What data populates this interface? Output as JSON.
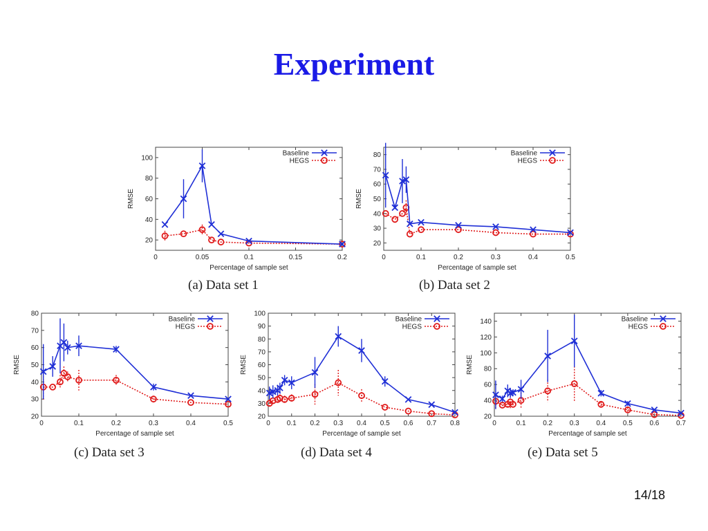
{
  "slide": {
    "title": "Experiment",
    "page_number": "14/18"
  },
  "colors": {
    "baseline": "#1f2fd6",
    "hegs": "#e01b1b",
    "title": "#1a1ae6"
  },
  "chart_data": [
    {
      "type": "line",
      "caption": "(a) Data set 1",
      "xlabel": "Percentage of sample set",
      "ylabel": "RMSE",
      "xlim": [
        0,
        0.2
      ],
      "ylim": [
        10,
        110
      ],
      "xticks": [
        0,
        0.05,
        0.1,
        0.15,
        0.2
      ],
      "yticks": [
        20,
        40,
        60,
        80,
        100
      ],
      "xtick_labels": [
        "0",
        "0.05",
        "0.1",
        "0.15",
        "0.2"
      ],
      "ytick_labels": [
        "20",
        "40",
        "60",
        "80",
        "100"
      ],
      "legend_position": "top-right",
      "series": [
        {
          "name": "Baseline",
          "color": "#1f2fd6",
          "marker": "x",
          "style": "solid",
          "x": [
            0.01,
            0.03,
            0.05,
            0.06,
            0.07,
            0.1,
            0.2
          ],
          "y": [
            35,
            60,
            92,
            35,
            26,
            19,
            16
          ],
          "err": [
            0,
            19,
            16,
            0,
            0,
            0,
            0
          ]
        },
        {
          "name": "HEGS",
          "color": "#e01b1b",
          "marker": "o",
          "style": "dotted",
          "x": [
            0.01,
            0.03,
            0.05,
            0.06,
            0.07,
            0.1,
            0.2
          ],
          "y": [
            24,
            26,
            30,
            20,
            18,
            17,
            16
          ],
          "err": [
            5,
            0,
            5,
            0,
            0,
            0,
            0
          ]
        }
      ]
    },
    {
      "type": "line",
      "caption": "(b) Data set 2",
      "xlabel": "Percentage of sample set",
      "ylabel": "RMSE",
      "xlim": [
        0,
        0.5
      ],
      "ylim": [
        15,
        85
      ],
      "xticks": [
        0,
        0.1,
        0.2,
        0.3,
        0.4,
        0.5
      ],
      "yticks": [
        20,
        30,
        40,
        50,
        60,
        70,
        80
      ],
      "xtick_labels": [
        "0",
        "0.1",
        "0.2",
        "0.3",
        "0.4",
        "0.5"
      ],
      "ytick_labels": [
        "20",
        "30",
        "40",
        "50",
        "60",
        "70",
        "80"
      ],
      "legend_position": "top-right",
      "series": [
        {
          "name": "Baseline",
          "color": "#1f2fd6",
          "marker": "x",
          "style": "solid",
          "x": [
            0.005,
            0.03,
            0.05,
            0.06,
            0.07,
            0.1,
            0.2,
            0.3,
            0.4,
            0.5
          ],
          "y": [
            66,
            44,
            62,
            63,
            33,
            34,
            32,
            31,
            29,
            27
          ],
          "err": [
            22,
            0,
            15,
            9,
            0,
            0,
            0,
            0,
            0,
            0
          ]
        },
        {
          "name": "HEGS",
          "color": "#e01b1b",
          "marker": "o",
          "style": "dotted",
          "x": [
            0.005,
            0.03,
            0.05,
            0.06,
            0.07,
            0.1,
            0.2,
            0.3,
            0.4,
            0.5
          ],
          "y": [
            40,
            36,
            40,
            44,
            26,
            29,
            29,
            27,
            26,
            26
          ],
          "err": [
            0,
            0,
            0,
            5,
            0,
            0,
            0,
            0,
            0,
            0
          ]
        }
      ]
    },
    {
      "type": "line",
      "caption": "(c) Data set 3",
      "xlabel": "Percentage of sample set",
      "ylabel": "RMSE",
      "xlim": [
        0,
        0.5
      ],
      "ylim": [
        20,
        80
      ],
      "xticks": [
        0,
        0.1,
        0.2,
        0.3,
        0.4,
        0.5
      ],
      "yticks": [
        20,
        30,
        40,
        50,
        60,
        70,
        80
      ],
      "xtick_labels": [
        "0",
        "0.1",
        "0.2",
        "0.3",
        "0.4",
        "0.5"
      ],
      "ytick_labels": [
        "20",
        "30",
        "40",
        "50",
        "60",
        "70",
        "80"
      ],
      "legend_position": "top-right",
      "series": [
        {
          "name": "Baseline",
          "color": "#1f2fd6",
          "marker": "x",
          "style": "solid",
          "x": [
            0.005,
            0.03,
            0.05,
            0.06,
            0.07,
            0.1,
            0.2,
            0.3,
            0.4,
            0.5
          ],
          "y": [
            46,
            49,
            61,
            63,
            60,
            61,
            59,
            37,
            32,
            30
          ],
          "err": [
            16,
            6,
            16,
            11,
            4,
            6,
            2,
            2,
            0,
            0
          ]
        },
        {
          "name": "HEGS",
          "color": "#e01b1b",
          "marker": "o",
          "style": "dotted",
          "x": [
            0.005,
            0.03,
            0.05,
            0.06,
            0.07,
            0.1,
            0.2,
            0.3,
            0.4,
            0.5
          ],
          "y": [
            37,
            37,
            40,
            45,
            43,
            41,
            41,
            30,
            28,
            27
          ],
          "err": [
            8,
            0,
            4,
            4,
            3,
            6,
            3,
            2,
            0,
            0
          ]
        }
      ]
    },
    {
      "type": "line",
      "caption": "(d) Data set 4",
      "xlabel": "Percentage of sample set",
      "ylabel": "RMSE",
      "xlim": [
        0,
        0.8
      ],
      "ylim": [
        20,
        100
      ],
      "xticks": [
        0,
        0.1,
        0.2,
        0.3,
        0.4,
        0.5,
        0.6,
        0.7,
        0.8
      ],
      "yticks": [
        20,
        30,
        40,
        50,
        60,
        70,
        80,
        90,
        100
      ],
      "xtick_labels": [
        "0",
        "0.1",
        "0.2",
        "0.3",
        "0.4",
        "0.5",
        "0.6",
        "0.7",
        "0.8"
      ],
      "ytick_labels": [
        "20",
        "30",
        "40",
        "50",
        "60",
        "70",
        "80",
        "90",
        "100"
      ],
      "legend_position": "top-right",
      "series": [
        {
          "name": "Baseline",
          "color": "#1f2fd6",
          "marker": "x",
          "style": "solid",
          "x": [
            0.005,
            0.02,
            0.04,
            0.05,
            0.07,
            0.1,
            0.2,
            0.3,
            0.4,
            0.5,
            0.6,
            0.7,
            0.8
          ],
          "y": [
            38,
            39,
            40,
            42,
            48,
            46,
            54,
            82,
            71,
            47,
            33,
            29,
            23
          ],
          "err": [
            5,
            5,
            4,
            4,
            4,
            5,
            12,
            8,
            9,
            4,
            0,
            0,
            0
          ]
        },
        {
          "name": "HEGS",
          "color": "#e01b1b",
          "marker": "o",
          "style": "dotted",
          "x": [
            0.005,
            0.02,
            0.04,
            0.05,
            0.07,
            0.1,
            0.2,
            0.3,
            0.4,
            0.5,
            0.6,
            0.7,
            0.8
          ],
          "y": [
            30,
            32,
            33,
            34,
            33,
            34,
            37,
            46,
            36,
            27,
            24,
            22,
            21
          ],
          "err": [
            3,
            3,
            3,
            3,
            3,
            3,
            8,
            10,
            5,
            0,
            0,
            0,
            0
          ]
        }
      ]
    },
    {
      "type": "line",
      "caption": "(e) Data set 5",
      "xlabel": "Percentage of sample set",
      "ylabel": "RMSE",
      "xlim": [
        0,
        0.7
      ],
      "ylim": [
        20,
        150
      ],
      "xticks": [
        0,
        0.1,
        0.2,
        0.3,
        0.4,
        0.5,
        0.6,
        0.7
      ],
      "yticks": [
        20,
        40,
        60,
        80,
        100,
        120,
        140
      ],
      "xtick_labels": [
        "0",
        "0.1",
        "0.2",
        "0.3",
        "0.4",
        "0.5",
        "0.6",
        "0.7"
      ],
      "ytick_labels": [
        "20",
        "40",
        "60",
        "80",
        "100",
        "120",
        "140"
      ],
      "legend_position": "top-right",
      "series": [
        {
          "name": "Baseline",
          "color": "#1f2fd6",
          "marker": "x",
          "style": "solid",
          "x": [
            0.005,
            0.03,
            0.05,
            0.06,
            0.07,
            0.1,
            0.2,
            0.3,
            0.4,
            0.5,
            0.6,
            0.7
          ],
          "y": [
            47,
            42,
            52,
            49,
            50,
            54,
            96,
            115,
            49,
            36,
            28,
            24
          ],
          "err": [
            18,
            4,
            8,
            6,
            4,
            12,
            33,
            33,
            4,
            3,
            0,
            0
          ]
        },
        {
          "name": "HEGS",
          "color": "#e01b1b",
          "marker": "o",
          "style": "dotted",
          "x": [
            0.005,
            0.03,
            0.05,
            0.06,
            0.07,
            0.1,
            0.2,
            0.3,
            0.4,
            0.5,
            0.6,
            0.7
          ],
          "y": [
            39,
            34,
            35,
            38,
            35,
            40,
            52,
            61,
            35,
            28,
            22,
            21
          ],
          "err": [
            10,
            4,
            5,
            8,
            4,
            10,
            14,
            22,
            3,
            3,
            0,
            0
          ]
        }
      ]
    }
  ]
}
